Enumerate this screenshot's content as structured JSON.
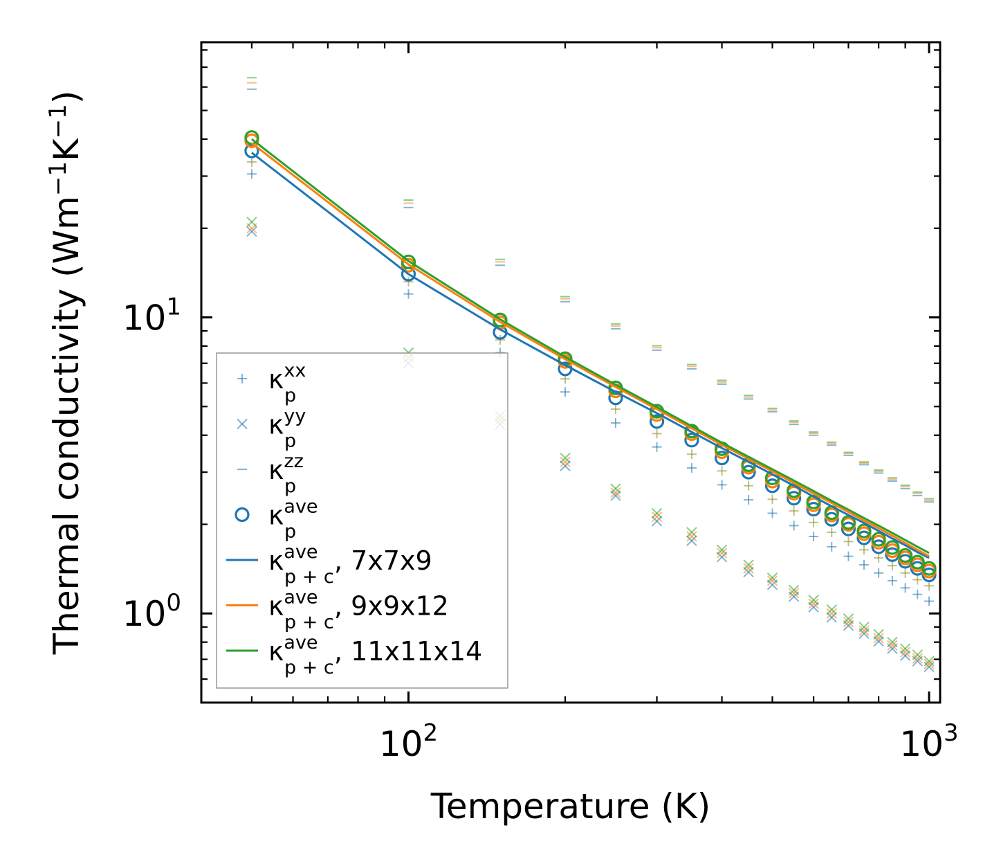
{
  "chart_data": {
    "type": "scatter",
    "title": "",
    "xlabel": "Temperature (K)",
    "ylabel_main": "Thermal conductivity (Wm",
    "ylabel_mid": "K",
    "ylabel_end": ")",
    "ylabel_exp": "−1",
    "xscale": "log",
    "yscale": "log",
    "xlim": [
      40,
      1050
    ],
    "ylim": [
      0.5,
      85
    ],
    "x_ticks": [
      {
        "value": 100,
        "base": "10",
        "exp": "2"
      },
      {
        "value": 1000,
        "base": "10",
        "exp": "3"
      }
    ],
    "y_ticks": [
      {
        "value": 1,
        "base": "10",
        "exp": "0"
      },
      {
        "value": 10,
        "base": "10",
        "exp": "1"
      }
    ],
    "x": [
      50,
      100,
      150,
      200,
      250,
      300,
      350,
      400,
      450,
      500,
      550,
      600,
      650,
      700,
      750,
      800,
      850,
      900,
      950,
      1000
    ],
    "colors": {
      "blue": "#1f77b4",
      "orange": "#ff7f0e",
      "green": "#2ca02c",
      "olive": "#8c8c2e"
    },
    "series": [
      {
        "name": "kxx_7x7x9",
        "kind": "plus",
        "color": "#1f77b4",
        "values": [
          30.5,
          12.0,
          7.6,
          5.6,
          4.4,
          3.65,
          3.1,
          2.72,
          2.42,
          2.18,
          1.98,
          1.82,
          1.68,
          1.56,
          1.46,
          1.37,
          1.29,
          1.22,
          1.16,
          1.1
        ]
      },
      {
        "name": "kxx_9x9x12",
        "kind": "plus",
        "color": "#8c8c2e",
        "values": [
          33.5,
          13.2,
          8.4,
          6.2,
          4.9,
          4.05,
          3.45,
          3.03,
          2.7,
          2.43,
          2.22,
          2.03,
          1.88,
          1.75,
          1.64,
          1.54,
          1.45,
          1.37,
          1.3,
          1.24
        ]
      },
      {
        "name": "kyy_7x7x9",
        "kind": "x",
        "color": "#1f77b4",
        "values": [
          19.5,
          7.0,
          4.35,
          3.15,
          2.5,
          2.05,
          1.76,
          1.55,
          1.38,
          1.25,
          1.14,
          1.05,
          0.97,
          0.91,
          0.855,
          0.805,
          0.76,
          0.72,
          0.69,
          0.66
        ]
      },
      {
        "name": "kyy_9x9x12",
        "kind": "x",
        "color": "#ff7f0e",
        "values": [
          20.0,
          7.3,
          4.5,
          3.25,
          2.56,
          2.12,
          1.82,
          1.6,
          1.42,
          1.29,
          1.17,
          1.08,
          1.0,
          0.935,
          0.875,
          0.825,
          0.78,
          0.74,
          0.705,
          0.675
        ]
      },
      {
        "name": "kyy_11x11x14",
        "kind": "x",
        "color": "#2ca02c",
        "values": [
          21.0,
          7.6,
          4.65,
          3.35,
          2.64,
          2.18,
          1.88,
          1.64,
          1.46,
          1.32,
          1.2,
          1.11,
          1.03,
          0.96,
          0.9,
          0.85,
          0.8,
          0.76,
          0.725,
          0.69
        ]
      },
      {
        "name": "kzz_7x7x9",
        "kind": "dash",
        "color": "#1f77b4",
        "values": [
          59.0,
          23.5,
          15.0,
          11.3,
          9.15,
          7.75,
          6.7,
          5.95,
          5.3,
          4.8,
          4.35,
          4.0,
          3.7,
          3.42,
          3.18,
          2.98,
          2.8,
          2.64,
          2.5,
          2.38
        ]
      },
      {
        "name": "kzz_9x9x12",
        "kind": "dash",
        "color": "#ff7f0e",
        "values": [
          62.0,
          24.3,
          15.4,
          11.55,
          9.35,
          7.9,
          6.83,
          6.05,
          5.38,
          4.87,
          4.42,
          4.06,
          3.75,
          3.47,
          3.22,
          3.02,
          2.84,
          2.68,
          2.54,
          2.41
        ]
      },
      {
        "name": "kzz_11x11x14",
        "kind": "dash",
        "color": "#2ca02c",
        "values": [
          64.5,
          24.9,
          15.7,
          11.75,
          9.5,
          8.02,
          6.93,
          6.13,
          5.45,
          4.93,
          4.47,
          4.1,
          3.79,
          3.5,
          3.25,
          3.05,
          2.87,
          2.71,
          2.57,
          2.44
        ]
      },
      {
        "name": "kave_7x7x9",
        "kind": "circle",
        "color": "#1f77b4",
        "values": [
          36.5,
          14.0,
          8.9,
          6.7,
          5.35,
          4.45,
          3.85,
          3.35,
          3.0,
          2.7,
          2.45,
          2.25,
          2.08,
          1.93,
          1.8,
          1.68,
          1.58,
          1.5,
          1.42,
          1.35
        ]
      },
      {
        "name": "kave_9x9x12",
        "kind": "circle",
        "color": "#ff7f0e",
        "values": [
          39.5,
          15.0,
          9.6,
          7.1,
          5.65,
          4.7,
          4.05,
          3.52,
          3.12,
          2.8,
          2.55,
          2.33,
          2.15,
          2.0,
          1.86,
          1.74,
          1.63,
          1.54,
          1.46,
          1.39
        ]
      },
      {
        "name": "kave_11x11x14",
        "kind": "circle",
        "color": "#2ca02c",
        "values": [
          40.5,
          15.4,
          9.8,
          7.25,
          5.78,
          4.82,
          4.13,
          3.6,
          3.18,
          2.87,
          2.6,
          2.38,
          2.19,
          2.03,
          1.9,
          1.78,
          1.67,
          1.57,
          1.49,
          1.42
        ]
      },
      {
        "name": "kpc_7x7x9",
        "kind": "line",
        "color": "#1f77b4",
        "values": [
          36.0,
          14.0,
          9.1,
          6.9,
          5.6,
          4.75,
          4.1,
          3.62,
          3.25,
          2.95,
          2.7,
          2.48,
          2.3,
          2.15,
          2.02,
          1.9,
          1.79,
          1.7,
          1.61,
          1.54
        ]
      },
      {
        "name": "kpc_9x9x12",
        "kind": "line",
        "color": "#ff7f0e",
        "values": [
          38.8,
          15.1,
          9.65,
          7.22,
          5.82,
          4.9,
          4.22,
          3.71,
          3.33,
          3.02,
          2.76,
          2.54,
          2.36,
          2.2,
          2.06,
          1.94,
          1.83,
          1.73,
          1.64,
          1.56
        ]
      },
      {
        "name": "kpc_11x11x14",
        "kind": "line",
        "color": "#2ca02c",
        "values": [
          40.0,
          15.5,
          9.85,
          7.35,
          5.92,
          4.98,
          4.29,
          3.77,
          3.38,
          3.07,
          2.81,
          2.59,
          2.4,
          2.24,
          2.1,
          1.98,
          1.87,
          1.77,
          1.68,
          1.6
        ]
      }
    ],
    "legend": {
      "placement": "lower-left",
      "entries": [
        {
          "kind": "plus",
          "color": "#1f77b4",
          "base": "κ",
          "sup": "xx",
          "sub": "p",
          "suffix": ""
        },
        {
          "kind": "x",
          "color": "#1f77b4",
          "base": "κ",
          "sup": "yy",
          "sub": "p",
          "suffix": ""
        },
        {
          "kind": "dash",
          "color": "#1f77b4",
          "base": "κ",
          "sup": "zz",
          "sub": "p",
          "suffix": ""
        },
        {
          "kind": "circle",
          "color": "#1f77b4",
          "base": "κ",
          "sup": "ave",
          "sub": "p",
          "suffix": ""
        },
        {
          "kind": "line",
          "color": "#1f77b4",
          "base": "κ",
          "sup": "ave",
          "sub": "p + c",
          "suffix": ", 7x7x9"
        },
        {
          "kind": "line",
          "color": "#ff7f0e",
          "base": "κ",
          "sup": "ave",
          "sub": "p + c",
          "suffix": ", 9x9x12"
        },
        {
          "kind": "line",
          "color": "#2ca02c",
          "base": "κ",
          "sup": "ave",
          "sub": "p + c",
          "suffix": ", 11x11x14"
        }
      ]
    }
  }
}
